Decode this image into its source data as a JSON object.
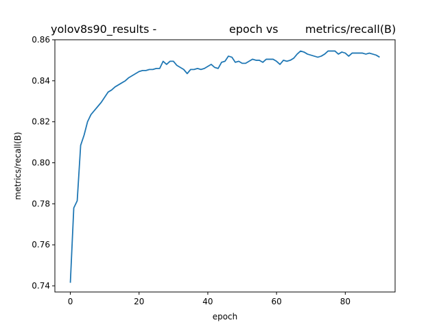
{
  "chart_data": {
    "type": "line",
    "title_parts": [
      "yolov8s90_results -",
      "epoch vs",
      "metrics/recall(B)"
    ],
    "xlabel": "epoch",
    "ylabel": "metrics/recall(B)",
    "xlim": [
      -4.5,
      94.5
    ],
    "ylim": [
      0.737,
      0.86
    ],
    "xticks": [
      0,
      20,
      40,
      60,
      80
    ],
    "yticks": [
      0.74,
      0.76,
      0.78,
      0.8,
      0.82,
      0.84,
      0.86
    ],
    "ytick_labels": [
      "0.74",
      "0.76",
      "0.78",
      "0.80",
      "0.82",
      "0.84",
      "0.86"
    ],
    "grid": false,
    "line_color": "#1f77b4",
    "series": [
      {
        "x": [
          0,
          1,
          2,
          3,
          4,
          5,
          6,
          7,
          8,
          9,
          10,
          11,
          12,
          13,
          14,
          15,
          16,
          17,
          18,
          19,
          20,
          21,
          22,
          23,
          24,
          25,
          26,
          27,
          28,
          29,
          30,
          31,
          32,
          33,
          34,
          35,
          36,
          37,
          38,
          39,
          40,
          41,
          42,
          43,
          44,
          45,
          46,
          47,
          48,
          49,
          50,
          51,
          52,
          53,
          54,
          55,
          56,
          57,
          58,
          59,
          60,
          61,
          62,
          63,
          64,
          65,
          66,
          67,
          68,
          69,
          70,
          71,
          72,
          73,
          74,
          75,
          76,
          77,
          78,
          79,
          80,
          81,
          82,
          83,
          84,
          85,
          86,
          87,
          88,
          89,
          90
        ],
        "y": [
          0.7415,
          0.778,
          0.7815,
          0.8085,
          0.8135,
          0.82,
          0.8235,
          0.8255,
          0.8275,
          0.8295,
          0.832,
          0.8345,
          0.8355,
          0.837,
          0.838,
          0.839,
          0.84,
          0.8415,
          0.8425,
          0.8435,
          0.8445,
          0.845,
          0.845,
          0.8455,
          0.8455,
          0.846,
          0.846,
          0.8495,
          0.848,
          0.8495,
          0.8495,
          0.8475,
          0.8465,
          0.8455,
          0.8435,
          0.8455,
          0.8455,
          0.846,
          0.8455,
          0.846,
          0.847,
          0.848,
          0.8465,
          0.846,
          0.849,
          0.8495,
          0.852,
          0.8515,
          0.849,
          0.8495,
          0.8485,
          0.8485,
          0.8495,
          0.8505,
          0.85,
          0.85,
          0.849,
          0.8505,
          0.8505,
          0.8505,
          0.8495,
          0.848,
          0.85,
          0.8495,
          0.85,
          0.851,
          0.853,
          0.8545,
          0.854,
          0.853,
          0.8525,
          0.852,
          0.8515,
          0.852,
          0.853,
          0.8545,
          0.8545,
          0.8545,
          0.853,
          0.854,
          0.8535,
          0.852,
          0.8535,
          0.8535,
          0.8535,
          0.8535,
          0.853,
          0.8535,
          0.853,
          0.8525,
          0.8515
        ]
      }
    ]
  }
}
